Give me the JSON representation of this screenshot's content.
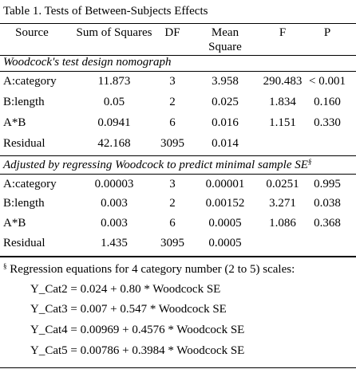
{
  "title": "Table 1. Tests of Between-Subjects Effects",
  "columns": [
    "Source",
    "Sum of Squares",
    "DF",
    "Mean Square",
    "F",
    "P"
  ],
  "column_mean_square": [
    "Mean",
    "Square"
  ],
  "section1": {
    "label": "Woodcock's test design nomograph",
    "rows": [
      {
        "source": "A:category",
        "ss": "11.873",
        "df": "3",
        "ms": "3.958",
        "f": "290.483",
        "p": "< 0.001"
      },
      {
        "source": "B:length",
        "ss": "0.05",
        "df": "2",
        "ms": "0.025",
        "f": "1.834",
        "p": "0.160"
      },
      {
        "source": "A*B",
        "ss": "0.0941",
        "df": "6",
        "ms": "0.016",
        "f": "1.151",
        "p": "0.330"
      },
      {
        "source": "Residual",
        "ss": "42.168",
        "df": "3095",
        "ms": "0.014",
        "f": "",
        "p": ""
      }
    ]
  },
  "section2": {
    "label": "Adjusted by regressing Woodcock to predict minimal sample SE",
    "label_mark": "§",
    "rows": [
      {
        "source": "A:category",
        "ss": "0.00003",
        "df": "3",
        "ms": "0.00001",
        "f": "0.0251",
        "p": "0.995"
      },
      {
        "source": "B:length",
        "ss": "0.003",
        "df": "2",
        "ms": "0.00152",
        "f": "3.271",
        "p": "0.038"
      },
      {
        "source": "A*B",
        "ss": "0.003",
        "df": "6",
        "ms": "0.0005",
        "f": "1.086",
        "p": "0.368"
      },
      {
        "source": "Residual",
        "ss": "1.435",
        "df": "3095",
        "ms": "0.0005",
        "f": "",
        "p": ""
      }
    ]
  },
  "footnote": {
    "mark": "§",
    "text": "Regression equations for 4 category number (2 to 5) scales:",
    "equations": [
      "Y_Cat2 = 0.024 + 0.80 * Woodcock SE",
      "Y_Cat3 = 0.007 + 0.547 * Woodcock SE",
      "Y_Cat4 = 0.00969 + 0.4576 * Woodcock SE",
      "Y_Cat5 = 0.00786 + 0.3984 * Woodcock SE"
    ]
  }
}
